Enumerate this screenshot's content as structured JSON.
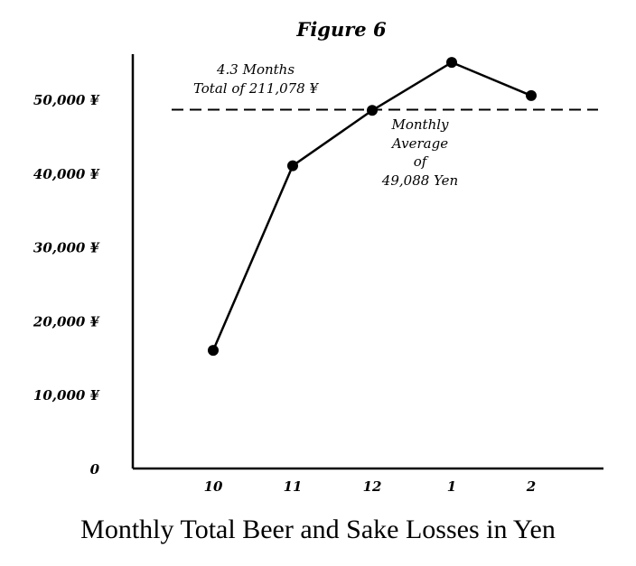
{
  "chart_data": {
    "type": "line",
    "title": "Figure 6",
    "caption": "Monthly Total Beer and Sake Losses in Yen",
    "categories": [
      "10",
      "11",
      "12",
      "1",
      "2"
    ],
    "values": [
      16000,
      41000,
      48500,
      55000,
      50500
    ],
    "ylim": [
      0,
      55000
    ],
    "y_ticks": [
      0,
      10000,
      20000,
      30000,
      40000,
      50000
    ],
    "y_tick_labels": [
      "0",
      "10,000 ¥",
      "20,000 ¥",
      "30,000 ¥",
      "40,000 ¥",
      "50,000 ¥"
    ],
    "reference_line": {
      "value": 49088,
      "style": "dashed"
    },
    "annotations": {
      "total": [
        "4.3 Months",
        "Total of 211,078 ¥"
      ],
      "average": [
        "Monthly",
        "Average",
        "of",
        "49,088 Yen"
      ]
    },
    "grid": false,
    "color": "#000000"
  }
}
